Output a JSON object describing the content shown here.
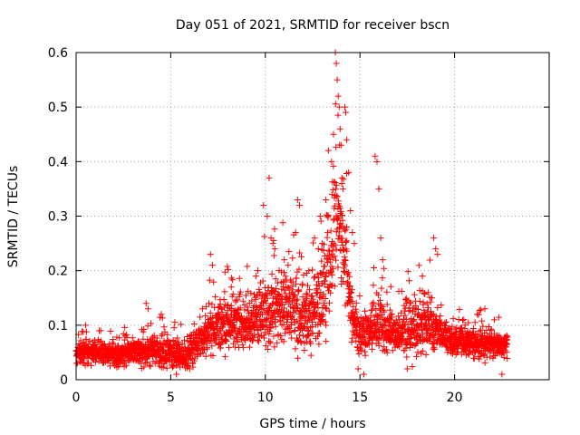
{
  "chart_data": {
    "type": "scatter",
    "title": "Day 051 of 2021, SRMTID for receiver bscn",
    "xlabel": "GPS time / hours",
    "ylabel": "SRMTID / TECUs",
    "xlim": [
      0,
      25
    ],
    "ylim": [
      0,
      0.6
    ],
    "xticks": [
      "0",
      "5",
      "10",
      "15",
      "20"
    ],
    "yticks": [
      "0",
      "0.1",
      "0.2",
      "0.3",
      "0.4",
      "0.5",
      "0.6"
    ],
    "grid": true,
    "marker": "+",
    "color": "#ff0000",
    "series": [
      {
        "name": "SRMTID",
        "profile": {
          "x": [
            0,
            1,
            2,
            3,
            4,
            5,
            6,
            6.8,
            7.5,
            8.5,
            9.5,
            10.2,
            10.8,
            11.5,
            12,
            12.5,
            13,
            13.4,
            13.7,
            14,
            14.3,
            14.6,
            15,
            15.5,
            16,
            16.5,
            17,
            17.5,
            18,
            18.5,
            19,
            19.5,
            20,
            21,
            22,
            22.8
          ],
          "median": [
            0.05,
            0.05,
            0.045,
            0.05,
            0.055,
            0.05,
            0.05,
            0.08,
            0.1,
            0.1,
            0.11,
            0.12,
            0.14,
            0.13,
            0.12,
            0.12,
            0.15,
            0.22,
            0.3,
            0.28,
            0.2,
            0.1,
            0.08,
            0.09,
            0.1,
            0.09,
            0.08,
            0.09,
            0.1,
            0.11,
            0.09,
            0.08,
            0.07,
            0.065,
            0.065,
            0.06
          ],
          "spread": [
            0.03,
            0.03,
            0.03,
            0.03,
            0.04,
            0.04,
            0.04,
            0.06,
            0.07,
            0.07,
            0.08,
            0.1,
            0.1,
            0.1,
            0.09,
            0.09,
            0.12,
            0.14,
            0.16,
            0.16,
            0.12,
            0.06,
            0.05,
            0.06,
            0.08,
            0.06,
            0.05,
            0.07,
            0.08,
            0.09,
            0.06,
            0.04,
            0.04,
            0.04,
            0.04,
            0.03
          ]
        },
        "points": [
          [
            7.1,
            0.23
          ],
          [
            7.2,
            0.21
          ],
          [
            9.9,
            0.32
          ],
          [
            10.1,
            0.3
          ],
          [
            10.2,
            0.37
          ],
          [
            10.3,
            0.26
          ],
          [
            10.5,
            0.24
          ],
          [
            10.4,
            0.25
          ],
          [
            11.6,
            0.27
          ],
          [
            11.7,
            0.33
          ],
          [
            11.8,
            0.32
          ],
          [
            12.6,
            0.26
          ],
          [
            12.8,
            0.24
          ],
          [
            12.9,
            0.3
          ],
          [
            13.0,
            0.25
          ],
          [
            13.2,
            0.33
          ],
          [
            13.3,
            0.3
          ],
          [
            13.5,
            0.4
          ],
          [
            13.6,
            0.45
          ],
          [
            13.7,
            0.6
          ],
          [
            13.75,
            0.58
          ],
          [
            13.8,
            0.55
          ],
          [
            13.85,
            0.52
          ],
          [
            13.9,
            0.5
          ],
          [
            13.95,
            0.46
          ],
          [
            14.0,
            0.43
          ],
          [
            14.05,
            0.37
          ],
          [
            14.1,
            0.35
          ],
          [
            14.2,
            0.5
          ],
          [
            14.25,
            0.49
          ],
          [
            14.3,
            0.44
          ],
          [
            14.4,
            0.38
          ],
          [
            14.5,
            0.31
          ],
          [
            14.6,
            0.27
          ],
          [
            14.7,
            0.25
          ],
          [
            15.8,
            0.41
          ],
          [
            15.9,
            0.4
          ],
          [
            16.0,
            0.35
          ],
          [
            16.1,
            0.26
          ],
          [
            16.2,
            0.22
          ],
          [
            18.3,
            0.19
          ],
          [
            18.9,
            0.26
          ],
          [
            19.0,
            0.24
          ],
          [
            19.1,
            0.23
          ],
          [
            18.6,
            0.16
          ],
          [
            18.8,
            0.15
          ],
          [
            3.7,
            0.14
          ],
          [
            3.8,
            0.13
          ],
          [
            4.5,
            0.12
          ],
          [
            8.2,
            0.17
          ],
          [
            9.5,
            0.19
          ],
          [
            9.6,
            0.2
          ],
          [
            11.0,
            0.22
          ],
          [
            11.2,
            0.21
          ],
          [
            12.3,
            0.2
          ],
          [
            21.2,
            0.12
          ],
          [
            21.6,
            0.13
          ],
          [
            22.1,
            0.11
          ],
          [
            0.5,
            0.1
          ],
          [
            1.3,
            0.09
          ],
          [
            5.3,
            0.01
          ],
          [
            6.0,
            0.02
          ],
          [
            14.9,
            0.02
          ],
          [
            15.2,
            0.01
          ],
          [
            17.5,
            0.02
          ],
          [
            22.5,
            0.01
          ]
        ]
      }
    ]
  }
}
